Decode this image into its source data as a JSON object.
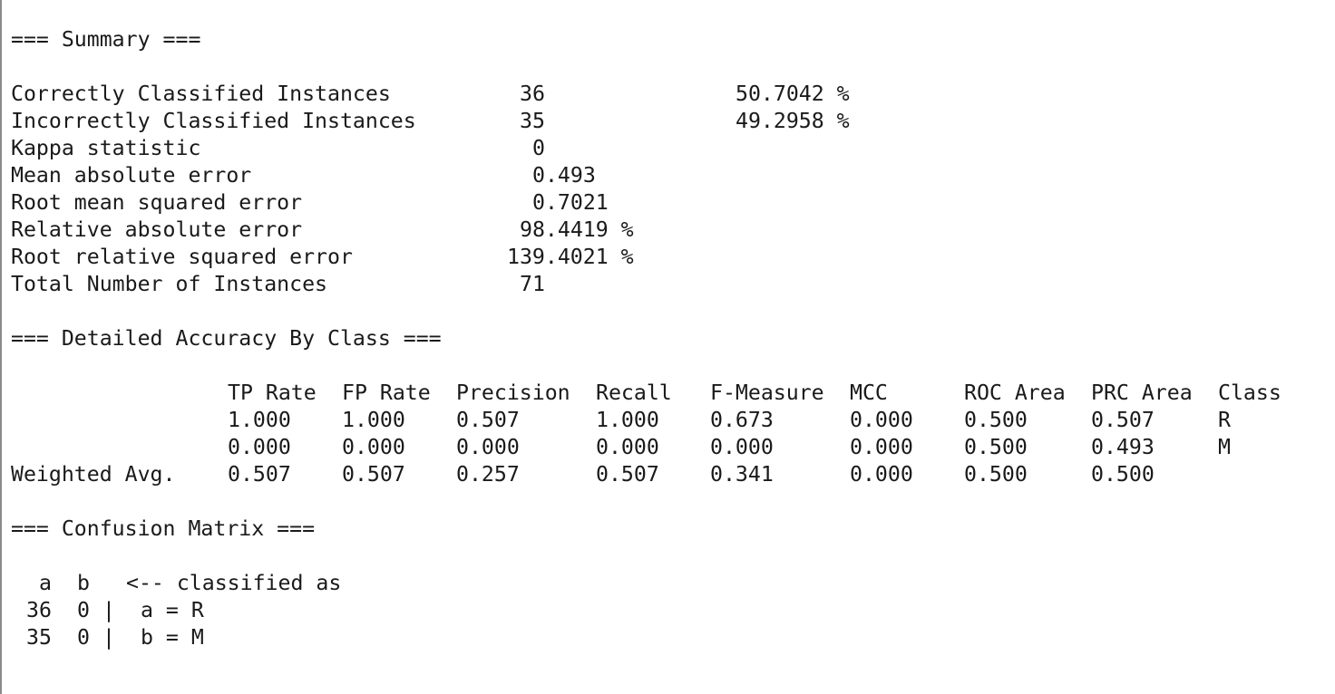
{
  "summary": {
    "header": "=== Summary ===",
    "rows": [
      {
        "label": "Correctly Classified Instances",
        "value": "36",
        "pct": "50.7042 %"
      },
      {
        "label": "Incorrectly Classified Instances",
        "value": "35",
        "pct": "49.2958 %"
      },
      {
        "label": "Kappa statistic",
        "value": "0"
      },
      {
        "label": "Mean absolute error",
        "value": "0.493"
      },
      {
        "label": "Root mean squared error",
        "value": "0.7021"
      },
      {
        "label": "Relative absolute error",
        "value": "98.4419 %"
      },
      {
        "label": "Root relative squared error",
        "value": "139.4021 %"
      },
      {
        "label": "Total Number of Instances",
        "value": "71"
      }
    ]
  },
  "accuracy": {
    "header": "=== Detailed Accuracy By Class ===",
    "columns": [
      "TP Rate",
      "FP Rate",
      "Precision",
      "Recall",
      "F-Measure",
      "MCC",
      "ROC Area",
      "PRC Area",
      "Class"
    ],
    "rows": [
      {
        "label": "",
        "values": [
          "1.000",
          "1.000",
          "0.507",
          "1.000",
          "0.673",
          "0.000",
          "0.500",
          "0.507",
          "R"
        ]
      },
      {
        "label": "",
        "values": [
          "0.000",
          "0.000",
          "0.000",
          "0.000",
          "0.000",
          "0.000",
          "0.500",
          "0.493",
          "M"
        ]
      },
      {
        "label": "Weighted Avg.",
        "values": [
          "0.507",
          "0.507",
          "0.257",
          "0.507",
          "0.341",
          "0.000",
          "0.500",
          "0.500",
          ""
        ]
      }
    ]
  },
  "confusion": {
    "header": "=== Confusion Matrix ===",
    "header_row": {
      "a": "a",
      "b": "b",
      "legend": "<-- classified as"
    },
    "rows": [
      {
        "a": "36",
        "b": "0",
        "sep": "|",
        "legend": "a = R"
      },
      {
        "a": "35",
        "b": "0",
        "sep": "|",
        "legend": "b = M"
      }
    ]
  }
}
